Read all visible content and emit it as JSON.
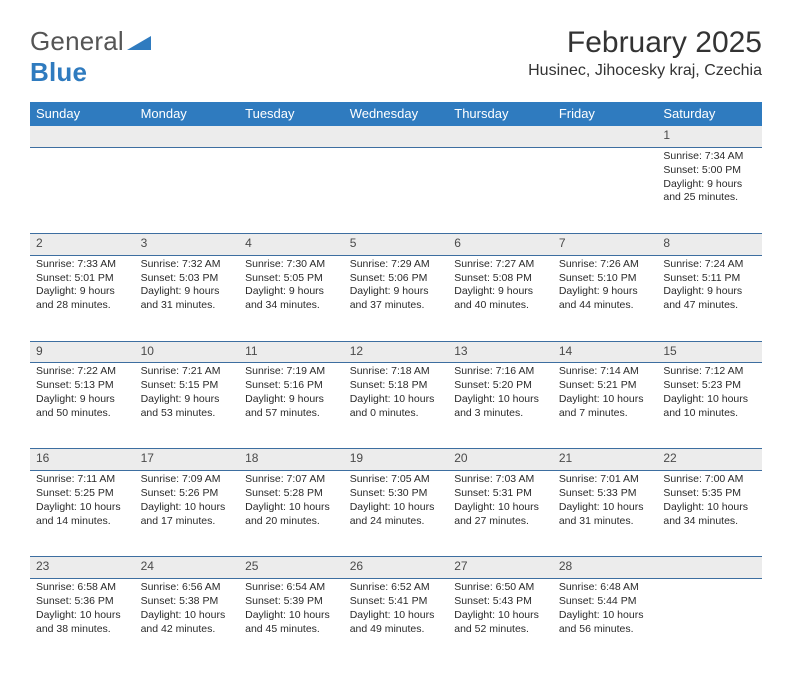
{
  "brand": {
    "word1": "General",
    "word2": "Blue",
    "triangle_color": "#2f7bbf"
  },
  "header": {
    "month_title": "February 2025",
    "location": "Husinec, Jihocesky kraj, Czechia"
  },
  "colors": {
    "header_bg": "#2f7bbf",
    "header_text": "#ffffff",
    "daynum_bg": "#ececec",
    "rule": "#3d6ea0",
    "body_text": "#2a2a2a"
  },
  "weekdays": [
    "Sunday",
    "Monday",
    "Tuesday",
    "Wednesday",
    "Thursday",
    "Friday",
    "Saturday"
  ],
  "weeks": [
    [
      {
        "n": "",
        "sunrise": "",
        "sunset": "",
        "day": ""
      },
      {
        "n": "",
        "sunrise": "",
        "sunset": "",
        "day": ""
      },
      {
        "n": "",
        "sunrise": "",
        "sunset": "",
        "day": ""
      },
      {
        "n": "",
        "sunrise": "",
        "sunset": "",
        "day": ""
      },
      {
        "n": "",
        "sunrise": "",
        "sunset": "",
        "day": ""
      },
      {
        "n": "",
        "sunrise": "",
        "sunset": "",
        "day": ""
      },
      {
        "n": "1",
        "sunrise": "Sunrise: 7:34 AM",
        "sunset": "Sunset: 5:00 PM",
        "day": "Daylight: 9 hours and 25 minutes."
      }
    ],
    [
      {
        "n": "2",
        "sunrise": "Sunrise: 7:33 AM",
        "sunset": "Sunset: 5:01 PM",
        "day": "Daylight: 9 hours and 28 minutes."
      },
      {
        "n": "3",
        "sunrise": "Sunrise: 7:32 AM",
        "sunset": "Sunset: 5:03 PM",
        "day": "Daylight: 9 hours and 31 minutes."
      },
      {
        "n": "4",
        "sunrise": "Sunrise: 7:30 AM",
        "sunset": "Sunset: 5:05 PM",
        "day": "Daylight: 9 hours and 34 minutes."
      },
      {
        "n": "5",
        "sunrise": "Sunrise: 7:29 AM",
        "sunset": "Sunset: 5:06 PM",
        "day": "Daylight: 9 hours and 37 minutes."
      },
      {
        "n": "6",
        "sunrise": "Sunrise: 7:27 AM",
        "sunset": "Sunset: 5:08 PM",
        "day": "Daylight: 9 hours and 40 minutes."
      },
      {
        "n": "7",
        "sunrise": "Sunrise: 7:26 AM",
        "sunset": "Sunset: 5:10 PM",
        "day": "Daylight: 9 hours and 44 minutes."
      },
      {
        "n": "8",
        "sunrise": "Sunrise: 7:24 AM",
        "sunset": "Sunset: 5:11 PM",
        "day": "Daylight: 9 hours and 47 minutes."
      }
    ],
    [
      {
        "n": "9",
        "sunrise": "Sunrise: 7:22 AM",
        "sunset": "Sunset: 5:13 PM",
        "day": "Daylight: 9 hours and 50 minutes."
      },
      {
        "n": "10",
        "sunrise": "Sunrise: 7:21 AM",
        "sunset": "Sunset: 5:15 PM",
        "day": "Daylight: 9 hours and 53 minutes."
      },
      {
        "n": "11",
        "sunrise": "Sunrise: 7:19 AM",
        "sunset": "Sunset: 5:16 PM",
        "day": "Daylight: 9 hours and 57 minutes."
      },
      {
        "n": "12",
        "sunrise": "Sunrise: 7:18 AM",
        "sunset": "Sunset: 5:18 PM",
        "day": "Daylight: 10 hours and 0 minutes."
      },
      {
        "n": "13",
        "sunrise": "Sunrise: 7:16 AM",
        "sunset": "Sunset: 5:20 PM",
        "day": "Daylight: 10 hours and 3 minutes."
      },
      {
        "n": "14",
        "sunrise": "Sunrise: 7:14 AM",
        "sunset": "Sunset: 5:21 PM",
        "day": "Daylight: 10 hours and 7 minutes."
      },
      {
        "n": "15",
        "sunrise": "Sunrise: 7:12 AM",
        "sunset": "Sunset: 5:23 PM",
        "day": "Daylight: 10 hours and 10 minutes."
      }
    ],
    [
      {
        "n": "16",
        "sunrise": "Sunrise: 7:11 AM",
        "sunset": "Sunset: 5:25 PM",
        "day": "Daylight: 10 hours and 14 minutes."
      },
      {
        "n": "17",
        "sunrise": "Sunrise: 7:09 AM",
        "sunset": "Sunset: 5:26 PM",
        "day": "Daylight: 10 hours and 17 minutes."
      },
      {
        "n": "18",
        "sunrise": "Sunrise: 7:07 AM",
        "sunset": "Sunset: 5:28 PM",
        "day": "Daylight: 10 hours and 20 minutes."
      },
      {
        "n": "19",
        "sunrise": "Sunrise: 7:05 AM",
        "sunset": "Sunset: 5:30 PM",
        "day": "Daylight: 10 hours and 24 minutes."
      },
      {
        "n": "20",
        "sunrise": "Sunrise: 7:03 AM",
        "sunset": "Sunset: 5:31 PM",
        "day": "Daylight: 10 hours and 27 minutes."
      },
      {
        "n": "21",
        "sunrise": "Sunrise: 7:01 AM",
        "sunset": "Sunset: 5:33 PM",
        "day": "Daylight: 10 hours and 31 minutes."
      },
      {
        "n": "22",
        "sunrise": "Sunrise: 7:00 AM",
        "sunset": "Sunset: 5:35 PM",
        "day": "Daylight: 10 hours and 34 minutes."
      }
    ],
    [
      {
        "n": "23",
        "sunrise": "Sunrise: 6:58 AM",
        "sunset": "Sunset: 5:36 PM",
        "day": "Daylight: 10 hours and 38 minutes."
      },
      {
        "n": "24",
        "sunrise": "Sunrise: 6:56 AM",
        "sunset": "Sunset: 5:38 PM",
        "day": "Daylight: 10 hours and 42 minutes."
      },
      {
        "n": "25",
        "sunrise": "Sunrise: 6:54 AM",
        "sunset": "Sunset: 5:39 PM",
        "day": "Daylight: 10 hours and 45 minutes."
      },
      {
        "n": "26",
        "sunrise": "Sunrise: 6:52 AM",
        "sunset": "Sunset: 5:41 PM",
        "day": "Daylight: 10 hours and 49 minutes."
      },
      {
        "n": "27",
        "sunrise": "Sunrise: 6:50 AM",
        "sunset": "Sunset: 5:43 PM",
        "day": "Daylight: 10 hours and 52 minutes."
      },
      {
        "n": "28",
        "sunrise": "Sunrise: 6:48 AM",
        "sunset": "Sunset: 5:44 PM",
        "day": "Daylight: 10 hours and 56 minutes."
      },
      {
        "n": "",
        "sunrise": "",
        "sunset": "",
        "day": ""
      }
    ]
  ]
}
